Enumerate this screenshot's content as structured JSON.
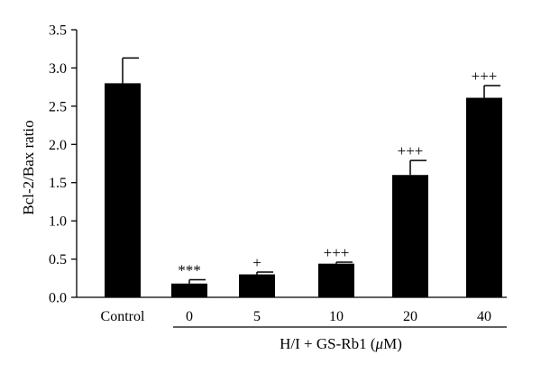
{
  "chart_data": {
    "type": "bar",
    "categories": [
      "Control",
      "0",
      "5",
      "10",
      "20",
      "40"
    ],
    "values": [
      2.8,
      0.18,
      0.3,
      0.44,
      1.6,
      2.61
    ],
    "errors": [
      0.33,
      0.05,
      0.03,
      0.02,
      0.19,
      0.16
    ],
    "significance": [
      "",
      "***",
      "+",
      "+++",
      "+++",
      "+++"
    ],
    "ylabel": "Bcl-2/Bax ratio",
    "xlabel": "",
    "group_label": "H/I + GS-Rb1 (μM)",
    "group_label_parts": {
      "prefix": "H/I + GS-Rb1 (",
      "symbol": "μ",
      "suffix": "M)"
    },
    "ylim": [
      0,
      3.5
    ],
    "yticks": [
      "0.0",
      "0.5",
      "1.0",
      "1.5",
      "2.0",
      "2.5",
      "3.0",
      "3.5"
    ],
    "grid": false,
    "bar_color": "#000000"
  }
}
